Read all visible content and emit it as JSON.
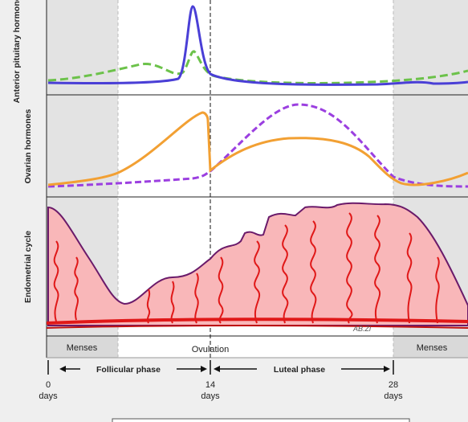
{
  "panels": {
    "pituitary": "Anterior pituitary hormones",
    "ovarian": "Ovarian hormones",
    "endometrial": "Endometrial cycle"
  },
  "phases": {
    "menses_left": "Menses",
    "ovulation": "Ovulation",
    "menses_right": "Menses",
    "follicular": "Follicular phase",
    "luteal": "Luteal phase"
  },
  "axis": {
    "ticks": [
      {
        "day": "0",
        "unit": "days"
      },
      {
        "day": "14",
        "unit": "days"
      },
      {
        "day": "28",
        "unit": "days"
      }
    ]
  },
  "signature": "AB.Zi"
}
